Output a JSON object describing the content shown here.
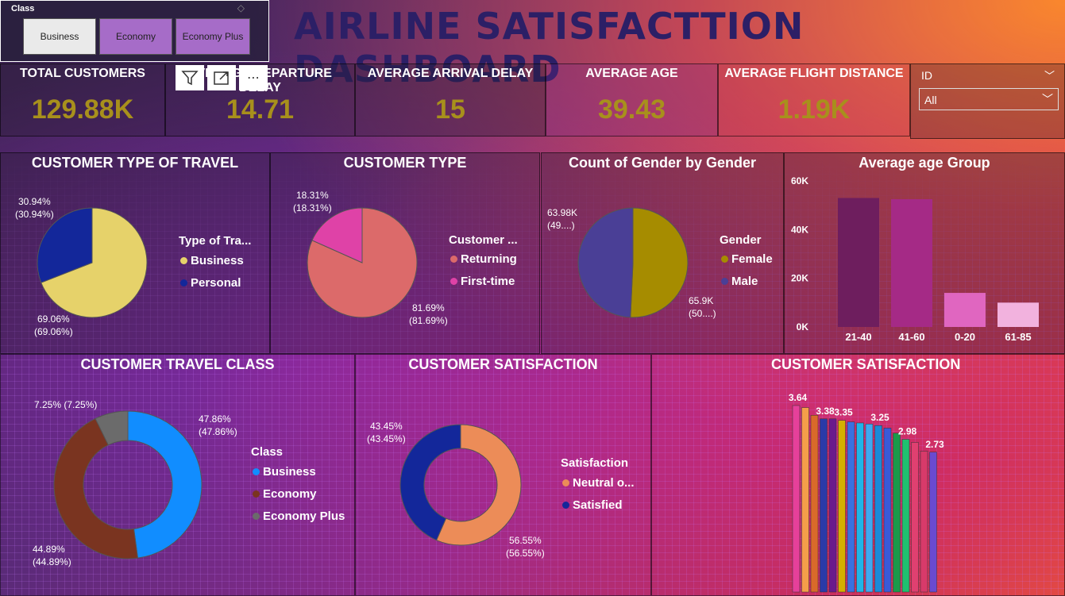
{
  "dashboard_title": "AIRLINE SATISFACTTION DASHBOARD",
  "slicer": {
    "title": "Class",
    "options": [
      "Business",
      "Economy",
      "Economy Plus"
    ],
    "selected": "Business"
  },
  "kpis": [
    {
      "label": "TOTAL CUSTOMERS",
      "value": "129.88K"
    },
    {
      "label": "AVERAGE DEPARTURE DELAY",
      "value": "14.71"
    },
    {
      "label": "AVERAGE ARRIVAL DELAY",
      "value": "15"
    },
    {
      "label": "AVERAGE AGE",
      "value": "39.43"
    },
    {
      "label": "AVERAGE FLIGHT DISTANCE",
      "value": "1.19K"
    }
  ],
  "id_slicer": {
    "label": "ID",
    "value": "All"
  },
  "colors": {
    "kpi_value": "#a8901c",
    "title": "#2c1f66",
    "business": "#e6d26a",
    "personal": "#13279a",
    "returning": "#dc6a6a",
    "first_time": "#df42a7",
    "female": "#a68c00",
    "male": "#4a3f96"
  },
  "chart_data": [
    {
      "type": "pie",
      "title": "CUSTOMER TYPE OF TRAVEL",
      "legend_title": "Type of Tra...",
      "slices": [
        {
          "label": "Business",
          "value": 69.06,
          "text": "69.06%",
          "text2": "(69.06%)",
          "color": "#e6d26a"
        },
        {
          "label": "Personal",
          "value": 30.94,
          "text": "30.94%",
          "text2": "(30.94%)",
          "color": "#13279a"
        }
      ]
    },
    {
      "type": "pie",
      "title": "CUSTOMER TYPE",
      "legend_title": "Customer ...",
      "slices": [
        {
          "label": "Returning",
          "value": 81.69,
          "text": "81.69%",
          "text2": "(81.69%)",
          "color": "#dc6a6a"
        },
        {
          "label": "First-time",
          "value": 18.31,
          "text": "18.31%",
          "text2": "(18.31%)",
          "color": "#df42a7"
        }
      ]
    },
    {
      "type": "pie",
      "title": "Count of Gender by Gender",
      "legend_title": "Gender",
      "slices": [
        {
          "label": "Female",
          "value": 65900,
          "text": "65.9K",
          "text2": "(50....)",
          "color": "#a68c00"
        },
        {
          "label": "Male",
          "value": 63980,
          "text": "63.98K",
          "text2": "(49....)",
          "color": "#4a3f96"
        }
      ]
    },
    {
      "type": "bar",
      "title": "Average age Group",
      "categories": [
        "21-40",
        "41-60",
        "0-20",
        "61-85"
      ],
      "values": [
        53000,
        52500,
        14000,
        10000
      ],
      "colors": [
        "#6e1e5e",
        "#a52a86",
        "#e066c0",
        "#f2b2de"
      ],
      "ylim": [
        0,
        60000
      ],
      "yticks": [
        "0K",
        "20K",
        "40K",
        "60K"
      ]
    },
    {
      "type": "pie",
      "title": "CUSTOMER TRAVEL CLASS",
      "legend_title": "Class",
      "donut": true,
      "slices": [
        {
          "label": "Business",
          "value": 47.86,
          "text": "47.86%",
          "text2": "(47.86%)",
          "color": "#118dff"
        },
        {
          "label": "Economy",
          "value": 44.89,
          "text": "44.89%",
          "text2": "(44.89%)",
          "color": "#7a3420"
        },
        {
          "label": "Economy Plus",
          "value": 7.25,
          "text": "7.25% (7.25%)",
          "text2": "",
          "color": "#6b6b6b"
        }
      ]
    },
    {
      "type": "pie",
      "title": "CUSTOMER SATISFACTION",
      "legend_title": "Satisfaction",
      "donut": true,
      "slices": [
        {
          "label": "Neutral o...",
          "value": 56.55,
          "text": "56.55%",
          "text2": "(56.55%)",
          "color": "#ec8c58"
        },
        {
          "label": "Satisfied",
          "value": 43.45,
          "text": "43.45%",
          "text2": "(43.45%)",
          "color": "#13279a"
        }
      ]
    },
    {
      "type": "bar",
      "title": "CUSTOMER SATISFACTION",
      "values": [
        3.64,
        3.6,
        3.45,
        3.38,
        3.38,
        3.35,
        3.32,
        3.3,
        3.28,
        3.25,
        3.2,
        3.1,
        2.98,
        2.92,
        2.75,
        2.73
      ],
      "labels": [
        "3.64",
        "",
        "",
        "3.38",
        "",
        "3.35",
        "",
        "",
        "",
        "3.25",
        "",
        "",
        "2.98",
        "",
        "",
        "2.73"
      ],
      "colors": [
        "#e6409a",
        "#f59e4a",
        "#d96a2a",
        "#2a3aa8",
        "#6a1a8c",
        "#d4b000",
        "#3a70e0",
        "#1fb5e8",
        "#40a8f0",
        "#1a8ad8",
        "#3a5ad8",
        "#1a9a4a",
        "#20c070",
        "#e04070",
        "#d83a6a",
        "#6a4ad0"
      ],
      "ylim": [
        0,
        3.64
      ]
    }
  ]
}
